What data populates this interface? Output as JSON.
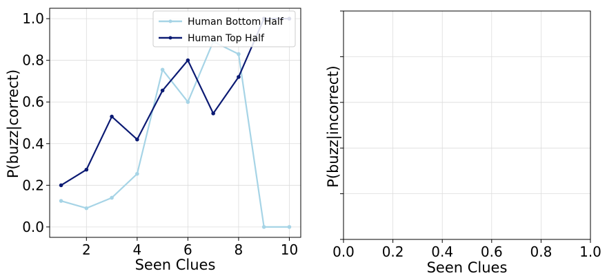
{
  "chart_data": [
    {
      "type": "line",
      "xlabel": "Seen Clues",
      "ylabel": "P(buzz|correct)",
      "xlim": [
        0.55,
        10.45
      ],
      "ylim": [
        -0.05,
        1.05
      ],
      "xticks": [
        2,
        4,
        6,
        8,
        10
      ],
      "yticks": [
        0.0,
        0.2,
        0.4,
        0.6,
        0.8,
        1.0
      ],
      "xtick_labels": [
        "2",
        "4",
        "6",
        "8",
        "10"
      ],
      "ytick_labels": [
        "0.0",
        "0.2",
        "0.4",
        "0.6",
        "0.8",
        "1.0"
      ],
      "grid": true,
      "legend_position": "top-right",
      "x": [
        1,
        2,
        3,
        4,
        5,
        6,
        7,
        8,
        9,
        10
      ],
      "series": [
        {
          "name": "Human Bottom Half",
          "color": "#a6d4e6",
          "values": [
            0.125,
            0.09,
            0.14,
            0.255,
            0.755,
            0.6,
            0.89,
            0.83,
            0.0,
            0.0
          ]
        },
        {
          "name": "Human Top Half",
          "color": "#0b1a73",
          "values": [
            0.2,
            0.275,
            0.53,
            0.42,
            0.655,
            0.8,
            0.545,
            0.72,
            1.0,
            1.0
          ]
        }
      ]
    },
    {
      "type": "line",
      "xlabel": "Seen Clues",
      "ylabel": "P(buzz|incorrect)",
      "xlim": [
        0.0,
        1.0
      ],
      "ylim": [
        0.0,
        1.0
      ],
      "xticks": [
        0.0,
        0.2,
        0.4,
        0.6,
        0.8,
        1.0
      ],
      "xtick_labels": [
        "0.0",
        "0.2",
        "0.4",
        "0.6",
        "0.8",
        "1.0"
      ],
      "yticks": [
        0.0,
        0.2,
        0.4,
        0.6,
        0.8,
        1.0
      ],
      "ytick_labels": [],
      "grid": true,
      "series": []
    }
  ]
}
